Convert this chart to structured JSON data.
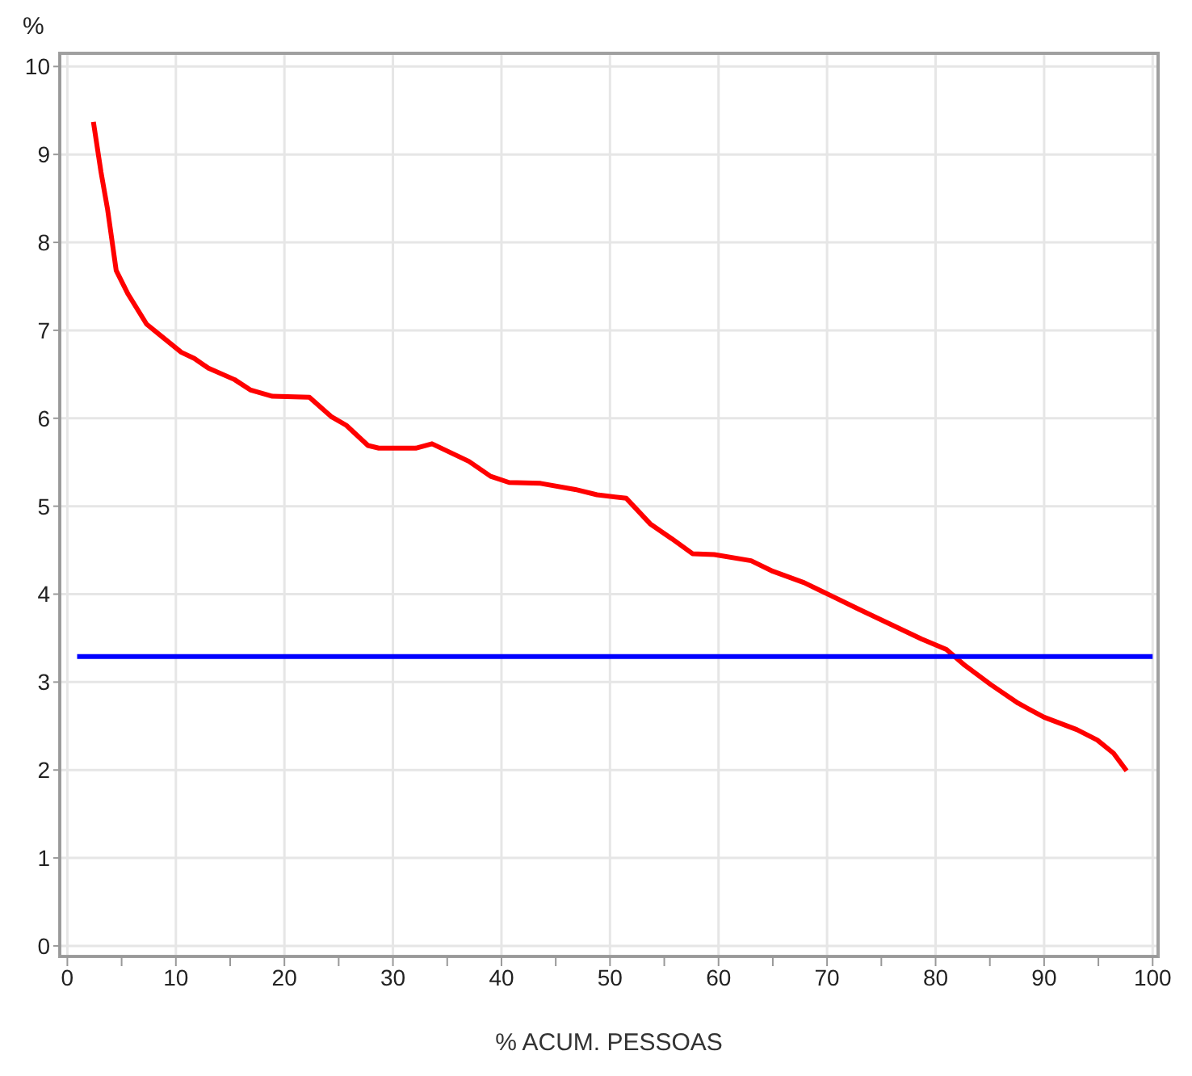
{
  "chart_data": {
    "type": "line",
    "xlabel": "% ACUM. PESSOAS",
    "ylabel": "%",
    "xlim": [
      -0.7,
      100.5
    ],
    "ylim": [
      -0.12,
      10.15
    ],
    "xticks": [
      0,
      {
        "value": 5,
        "label": null
      },
      10,
      {
        "value": 15,
        "label": null
      },
      20,
      {
        "value": 25,
        "label": null
      },
      30,
      {
        "value": 35,
        "label": null
      },
      40,
      {
        "value": 45,
        "label": null
      },
      50,
      {
        "value": 55,
        "label": null
      },
      60,
      {
        "value": 65,
        "label": null
      },
      70,
      {
        "value": 75,
        "label": null
      },
      80,
      {
        "value": 85,
        "label": null
      },
      90,
      {
        "value": 95,
        "label": null
      },
      100
    ],
    "yticks": [
      0,
      1,
      2,
      3,
      4,
      5,
      6,
      7,
      8,
      9,
      10
    ],
    "grid": true,
    "marker": "none",
    "line_style": "solid",
    "series": [
      {
        "color": "#ff0000",
        "x": [
          2.4,
          3.1,
          3.7,
          4.5,
          5.6,
          7.3,
          8.5,
          10.5,
          11.7,
          13.0,
          15.4,
          16.9,
          18.9,
          22.3,
          24.3,
          25.7,
          27.7,
          28.7,
          32.1,
          33.6,
          37.0,
          39.0,
          40.7,
          43.6,
          46.8,
          48.8,
          51.5,
          53.7,
          55.7,
          57.6,
          59.6,
          63.0,
          65.0,
          67.9,
          70.4,
          72.9,
          75.8,
          78.7,
          81.0,
          82.7,
          85.1,
          87.6,
          90.0,
          93.0,
          94.9,
          96.4,
          97.6
        ],
        "values": [
          9.37,
          8.8,
          8.38,
          7.68,
          7.41,
          7.07,
          6.95,
          6.75,
          6.68,
          6.57,
          6.44,
          6.32,
          6.25,
          6.24,
          6.02,
          5.92,
          5.69,
          5.66,
          5.66,
          5.71,
          5.51,
          5.34,
          5.27,
          5.26,
          5.19,
          5.13,
          5.09,
          4.8,
          4.63,
          4.46,
          4.45,
          4.38,
          4.26,
          4.13,
          3.98,
          3.83,
          3.66,
          3.49,
          3.37,
          3.19,
          2.97,
          2.76,
          2.6,
          2.46,
          2.34,
          2.19,
          1.99
        ]
      },
      {
        "color": "#0000ff",
        "x": [
          0.9,
          100
        ],
        "values": [
          3.29,
          3.29
        ]
      }
    ]
  }
}
